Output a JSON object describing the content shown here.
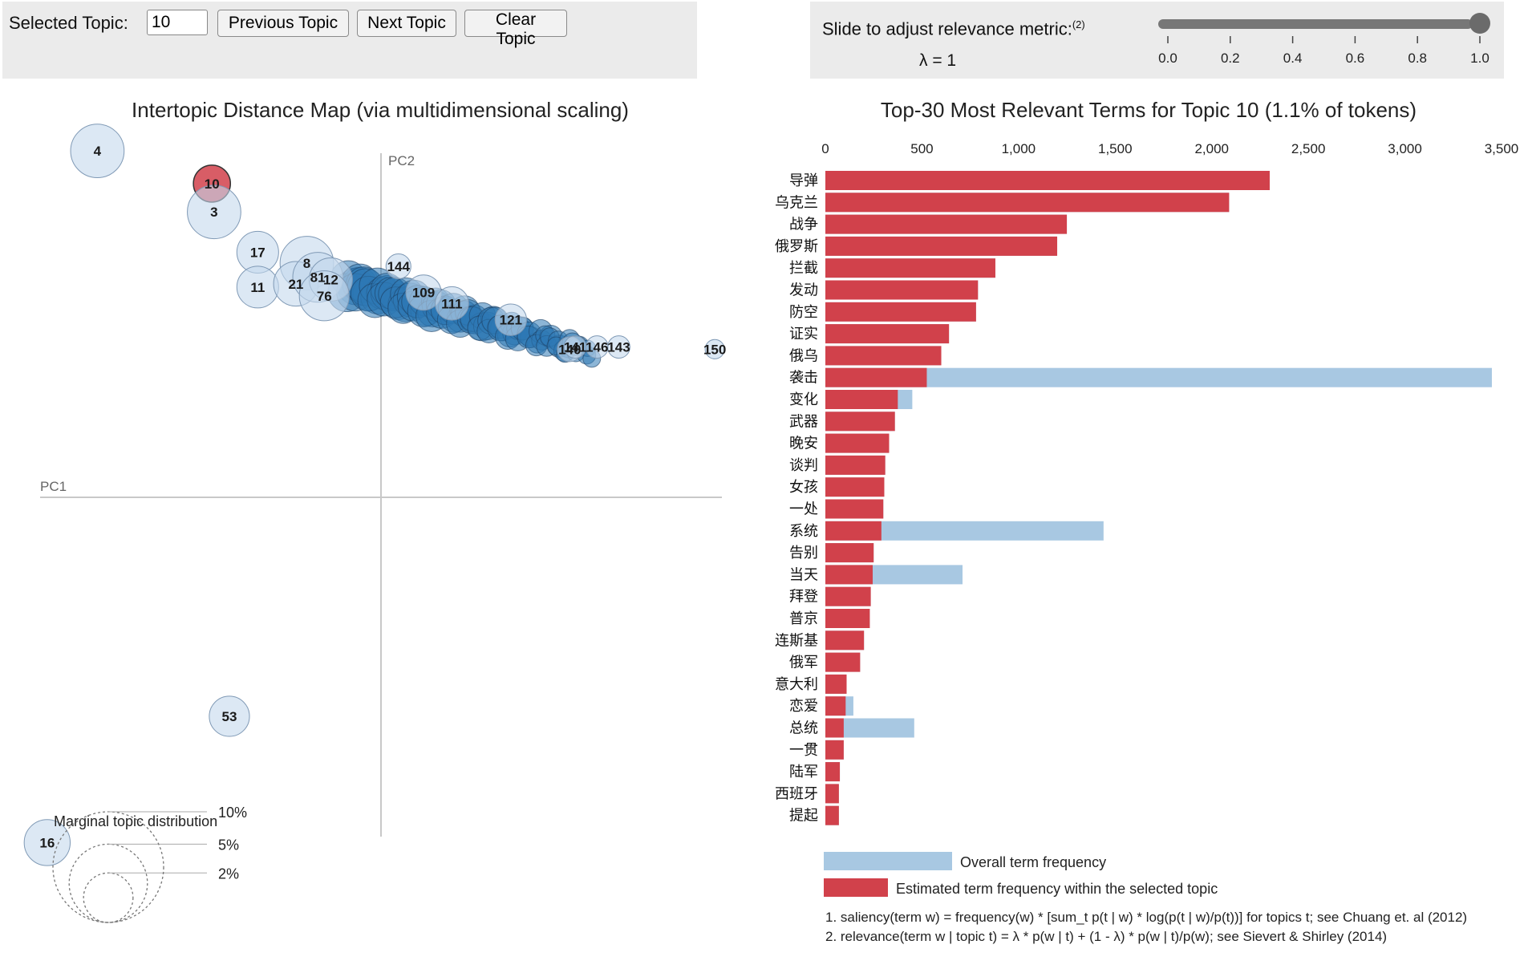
{
  "controls": {
    "selected_label": "Selected Topic:",
    "selected_value": "10",
    "prev_label": "Previous Topic",
    "next_label": "Next Topic",
    "clear_label": "Clear Topic",
    "slider_label": "Slide to adjust relevance metric:",
    "slider_note": "(2)",
    "lambda_text": "λ = 1",
    "slider_ticks": [
      "0.0",
      "0.2",
      "0.4",
      "0.6",
      "0.8",
      "1.0"
    ],
    "slider_value": 1.0
  },
  "colors": {
    "selected_red": "#d1414b",
    "overall_blue": "#a8c8e2",
    "bubble_fill": "#c4d8ec",
    "dense_blue": "#2e78b5"
  },
  "chart_data": [
    {
      "type": "scatter",
      "title": "Intertopic Distance Map (via multidimensional scaling)",
      "xlabel": "PC1",
      "ylabel": "PC2",
      "selected_topic": "10",
      "points": [
        {
          "label": "4",
          "x": -0.26,
          "y": 0.318,
          "size": 2.3
        },
        {
          "label": "10",
          "x": -0.155,
          "y": 0.288,
          "size": 1.1
        },
        {
          "label": "3",
          "x": -0.153,
          "y": 0.262,
          "size": 2.3
        },
        {
          "label": "17",
          "x": -0.113,
          "y": 0.225,
          "size": 1.4
        },
        {
          "label": "11",
          "x": -0.113,
          "y": 0.193,
          "size": 1.4
        },
        {
          "label": "8",
          "x": -0.068,
          "y": 0.215,
          "size": 2.3
        },
        {
          "label": "21",
          "x": -0.078,
          "y": 0.196,
          "size": 1.6
        },
        {
          "label": "81",
          "x": -0.058,
          "y": 0.202,
          "size": 2.0
        },
        {
          "label": "12",
          "x": -0.046,
          "y": 0.2,
          "size": 1.5
        },
        {
          "label": "76",
          "x": -0.052,
          "y": 0.185,
          "size": 2.0
        },
        {
          "label": "144",
          "x": 0.016,
          "y": 0.212,
          "size": 0.5
        },
        {
          "label": "109",
          "x": 0.039,
          "y": 0.188,
          "size": 1.0
        },
        {
          "label": "111",
          "x": 0.065,
          "y": 0.178,
          "size": 0.9
        },
        {
          "label": "121",
          "x": 0.119,
          "y": 0.163,
          "size": 0.8
        },
        {
          "label": "140",
          "x": 0.173,
          "y": 0.136,
          "size": 0.5
        },
        {
          "label": "141",
          "x": 0.178,
          "y": 0.138,
          "size": 0.4
        },
        {
          "label": "146",
          "x": 0.198,
          "y": 0.138,
          "size": 0.4
        },
        {
          "label": "143",
          "x": 0.218,
          "y": 0.138,
          "size": 0.4
        },
        {
          "label": "150",
          "x": 0.306,
          "y": 0.136,
          "size": 0.3
        },
        {
          "label": "53",
          "x": -0.139,
          "y": -0.201,
          "size": 1.3
        },
        {
          "label": "16",
          "x": -0.306,
          "y": -0.317,
          "size": 1.7
        }
      ],
      "marginal_legend": {
        "title": "Marginal topic distribution",
        "labels": [
          "2%",
          "5%",
          "10%"
        ],
        "values": [
          0.02,
          0.05,
          0.1
        ]
      }
    },
    {
      "type": "bar",
      "orientation": "horizontal",
      "title": "Top-30 Most Relevant Terms for Topic 10 (1.1% of tokens)",
      "xlim": [
        0,
        3500
      ],
      "xticks": [
        "0",
        "500",
        "1,000",
        "1,500",
        "2,000",
        "2,500",
        "3,000",
        "3,500"
      ],
      "categories": [
        "导弹",
        "乌克兰",
        "战争",
        "俄罗斯",
        "拦截",
        "发动",
        "防空",
        "证实",
        "俄乌",
        "袭击",
        "变化",
        "武器",
        "晚安",
        "谈判",
        "女孩",
        "一处",
        "系统",
        "告别",
        "当天",
        "拜登",
        "普京",
        "连斯基",
        "俄军",
        "意大利",
        "恋爱",
        "总统",
        "一贯",
        "陆军",
        "西班牙",
        "提起"
      ],
      "series": [
        {
          "name": "Overall term frequency",
          "values": [
            2300,
            2090,
            1250,
            1200,
            880,
            790,
            780,
            640,
            600,
            3450,
            450,
            360,
            330,
            310,
            305,
            300,
            1440,
            250,
            710,
            235,
            230,
            200,
            180,
            110,
            145,
            460,
            95,
            75,
            70,
            70
          ]
        },
        {
          "name": "Estimated term frequency within the selected topic",
          "values": [
            2300,
            2090,
            1250,
            1200,
            880,
            790,
            780,
            640,
            600,
            525,
            375,
            360,
            330,
            310,
            305,
            300,
            290,
            250,
            245,
            235,
            230,
            200,
            180,
            110,
            105,
            95,
            95,
            75,
            70,
            70
          ]
        }
      ],
      "footnotes": [
        "1. saliency(term w) = frequency(w) * [sum_t p(t | w) * log(p(t | w)/p(t))] for topics t; see Chuang et. al (2012)",
        "2. relevance(term w | topic t) = λ * p(w | t) + (1 - λ) * p(w | t)/p(w); see Sievert & Shirley (2014)"
      ]
    }
  ]
}
